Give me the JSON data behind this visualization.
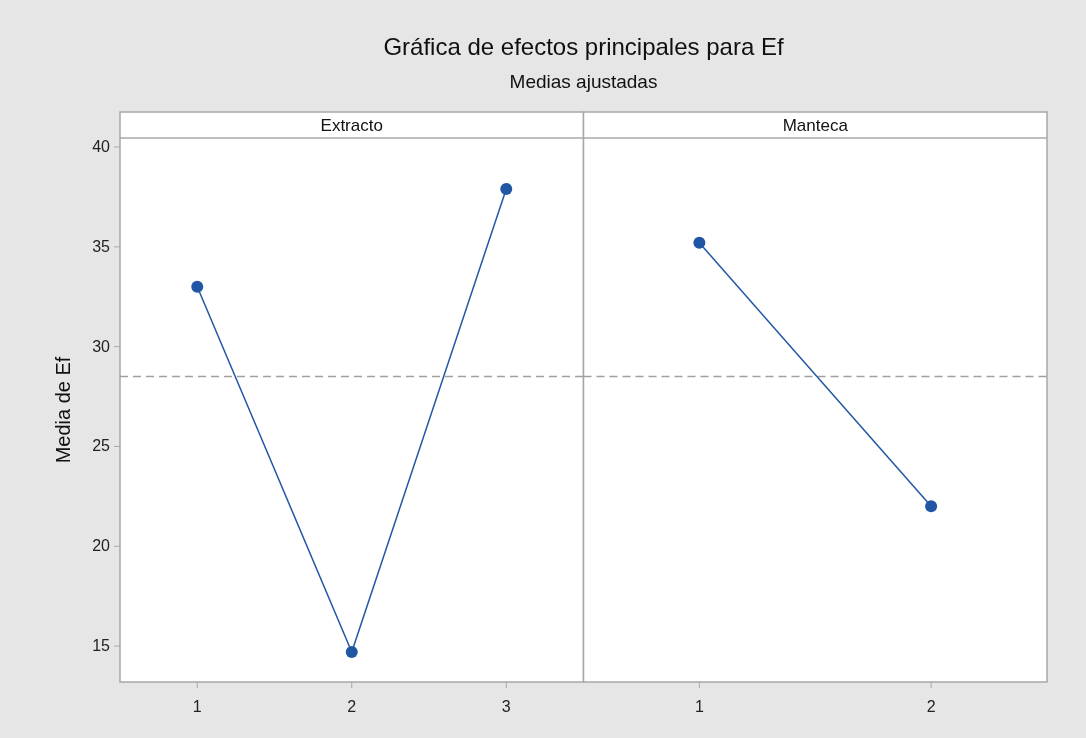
{
  "chart_data": [
    {
      "type": "line",
      "title": "Gráfica de efectos principales para Ef",
      "subtitle": "Medias ajustadas",
      "xlabel": "Extracto",
      "ylabel": "Media de Ef",
      "categories": [
        "1",
        "2",
        "3"
      ],
      "series": [
        {
          "color": "#2156a5",
          "values": [
            33.0,
            14.7,
            37.9
          ]
        }
      ],
      "ylim": [
        13.2,
        40.45
      ],
      "yticks": [
        15,
        20,
        25,
        30,
        35,
        40
      ],
      "marker": "circle",
      "line_style": "solid",
      "grid": false,
      "ref_lines": [
        {
          "axis": "y",
          "value": 28.5,
          "color": "#a0a0a0",
          "line_style": "dashed"
        }
      ]
    },
    {
      "type": "line",
      "xlabel": "Manteca",
      "categories": [
        "1",
        "2"
      ],
      "series": [
        {
          "color": "#2156a5",
          "values": [
            35.2,
            22.0
          ]
        }
      ],
      "ylim": [
        13.2,
        40.45
      ],
      "tick_labels": "x",
      "marker": "circle",
      "line_style": "solid",
      "grid": false,
      "ref_lines": [
        {
          "axis": "y",
          "value": 28.5,
          "color": "#a0a0a0",
          "line_style": "dashed"
        }
      ]
    }
  ]
}
